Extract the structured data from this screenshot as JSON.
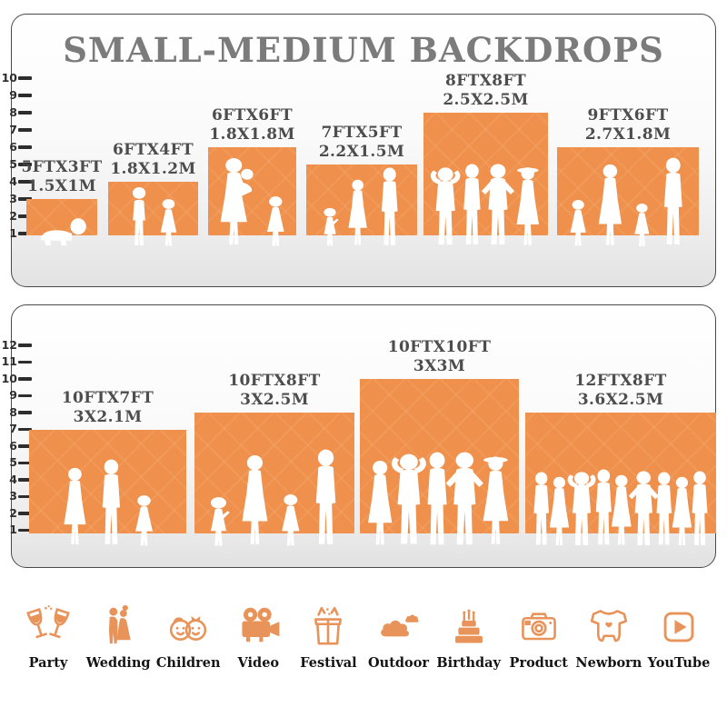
{
  "title": "SMALL-MEDIUM BACKDROPS",
  "colors": {
    "backdrop_orange": "#EF914C",
    "icon_orange": "#E8935A",
    "title_gray": "#7B7B7B",
    "label_gray": "#4D4D4D",
    "silhouette_white": "#FFFFFF"
  },
  "panels": [
    {
      "id": "top",
      "ruler_unit": "FT",
      "ruler_ticks": [
        10,
        9,
        8,
        7,
        6,
        5,
        4,
        3,
        2,
        1
      ],
      "backdrops": [
        {
          "size_ft": "5FTX3FT",
          "size_m": "1.5X1M",
          "w_ft": 5,
          "h_ft": 3,
          "figures": [
            {
              "type": "baby-crawl",
              "h": 0.62
            }
          ]
        },
        {
          "size_ft": "6FTX4FT",
          "size_m": "1.8X1.2M",
          "w_ft": 6,
          "h_ft": 4,
          "figures": [
            {
              "type": "boy",
              "h": 0.93
            },
            {
              "type": "girl",
              "h": 0.75
            }
          ]
        },
        {
          "size_ft": "6FTX6FT",
          "size_m": "1.8X1.8M",
          "w_ft": 6,
          "h_ft": 6,
          "figures": [
            {
              "type": "woman-baby",
              "h": 0.9
            },
            {
              "type": "girl",
              "h": 0.52
            }
          ]
        },
        {
          "size_ft": "7FTX5FT",
          "size_m": "2.2X1.5M",
          "w_ft": 7,
          "h_ft": 5,
          "figures": [
            {
              "type": "toddler",
              "h": 0.48
            },
            {
              "type": "woman",
              "h": 0.82
            },
            {
              "type": "man",
              "h": 0.97
            }
          ]
        },
        {
          "size_ft": "8FTX8FT",
          "size_m": "2.5X2.5M",
          "w_ft": 8,
          "h_ft": 8,
          "figures": [
            {
              "type": "man-armsup",
              "h": 0.6
            },
            {
              "type": "man",
              "h": 0.62
            },
            {
              "type": "man-hips",
              "h": 0.62
            },
            {
              "type": "woman-hat",
              "h": 0.61
            }
          ]
        },
        {
          "size_ft": "9FTX6FT",
          "size_m": "2.7X1.8M",
          "w_ft": 9,
          "h_ft": 6,
          "figures": [
            {
              "type": "girl",
              "h": 0.48
            },
            {
              "type": "woman",
              "h": 0.84
            },
            {
              "type": "girl",
              "h": 0.45
            },
            {
              "type": "man",
              "h": 0.9
            }
          ]
        }
      ]
    },
    {
      "id": "bottom",
      "ruler_unit": "FT",
      "ruler_ticks": [
        12,
        11,
        10,
        9,
        8,
        7,
        6,
        5,
        4,
        3,
        2,
        1
      ],
      "backdrops": [
        {
          "size_ft": "10FTX7FT",
          "size_m": "3X2.1M",
          "w_ft": 10,
          "h_ft": 7,
          "figures": [
            {
              "type": "woman",
              "h": 0.68
            },
            {
              "type": "man",
              "h": 0.75
            },
            {
              "type": "girl",
              "h": 0.45
            }
          ]
        },
        {
          "size_ft": "10FTX8FT",
          "size_m": "3X2.5M",
          "w_ft": 10,
          "h_ft": 8,
          "figures": [
            {
              "type": "toddler",
              "h": 0.38
            },
            {
              "type": "woman",
              "h": 0.69
            },
            {
              "type": "girl",
              "h": 0.4
            },
            {
              "type": "man",
              "h": 0.73
            }
          ]
        },
        {
          "size_ft": "10FTX10FT",
          "size_m": "3X3M",
          "w_ft": 10,
          "h_ft": 10,
          "figures": [
            {
              "type": "woman",
              "h": 0.52
            },
            {
              "type": "man-armsup",
              "h": 0.56
            },
            {
              "type": "man",
              "h": 0.57
            },
            {
              "type": "man-hips",
              "h": 0.57
            },
            {
              "type": "woman-hat",
              "h": 0.55
            }
          ]
        },
        {
          "size_ft": "12FTX8FT",
          "size_m": "3.6X2.5M",
          "w_ft": 12,
          "h_ft": 8,
          "figures": [
            {
              "type": "man",
              "h": 0.56
            },
            {
              "type": "woman",
              "h": 0.53
            },
            {
              "type": "man-armsup",
              "h": 0.57
            },
            {
              "type": "man",
              "h": 0.58
            },
            {
              "type": "woman",
              "h": 0.54
            },
            {
              "type": "man-hips",
              "h": 0.57
            },
            {
              "type": "man",
              "h": 0.56
            },
            {
              "type": "woman",
              "h": 0.53
            },
            {
              "type": "man",
              "h": 0.57
            }
          ]
        }
      ]
    }
  ],
  "categories": [
    {
      "label": "Party",
      "icon": "party-icon"
    },
    {
      "label": "Wedding",
      "icon": "wedding-icon"
    },
    {
      "label": "Children",
      "icon": "children-icon"
    },
    {
      "label": "Video",
      "icon": "video-icon"
    },
    {
      "label": "Festival",
      "icon": "festival-icon"
    },
    {
      "label": "Outdoor",
      "icon": "outdoor-icon"
    },
    {
      "label": "Birthday",
      "icon": "birthday-icon"
    },
    {
      "label": "Product",
      "icon": "product-icon"
    },
    {
      "label": "Newborn",
      "icon": "newborn-icon"
    },
    {
      "label": "YouTube",
      "icon": "youtube-icon"
    }
  ]
}
